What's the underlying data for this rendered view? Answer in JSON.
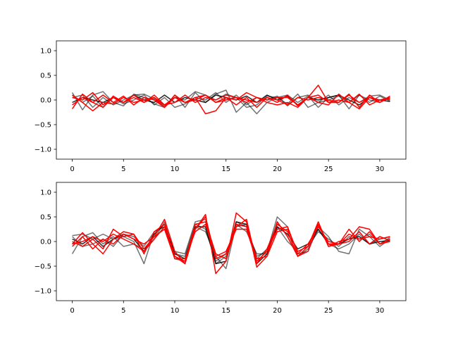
{
  "chart_data": [
    {
      "type": "line",
      "title": "",
      "xlabel": "",
      "ylabel": "",
      "xlim": [
        -1.55,
        32.55
      ],
      "ylim": [
        -1.2,
        1.2
      ],
      "xticks": [
        0,
        5,
        10,
        15,
        20,
        25,
        30
      ],
      "yticks": [
        -1.0,
        -0.5,
        0.0,
        0.5,
        1.0
      ],
      "xtick_labels": [
        "0",
        "5",
        "10",
        "15",
        "20",
        "25",
        "30"
      ],
      "ytick_labels": [
        "−1.0",
        "−0.5",
        "0.0",
        "0.5",
        "1.0"
      ],
      "grid": false,
      "x": [
        0,
        1,
        2,
        3,
        4,
        5,
        6,
        7,
        8,
        9,
        10,
        11,
        12,
        13,
        14,
        15,
        16,
        17,
        18,
        19,
        20,
        21,
        22,
        23,
        24,
        25,
        26,
        27,
        28,
        29,
        30,
        31
      ],
      "series": [
        {
          "color": "#000000",
          "opacity": 0.55,
          "values": [
            0.15,
            -0.2,
            0.1,
            0.17,
            -0.05,
            -0.12,
            0.12,
            0.05,
            -0.08,
            -0.15,
            0.1,
            -0.15,
            0.15,
            -0.05,
            0.12,
            0.2,
            -0.25,
            -0.05,
            -0.28,
            -0.05,
            0.05,
            0.1,
            -0.05,
            0.08,
            -0.15,
            0.05,
            0.1,
            -0.18,
            0.1,
            -0.05,
            0.08,
            -0.02
          ]
        },
        {
          "color": "#000000",
          "opacity": 0.55,
          "values": [
            0.05,
            0.1,
            -0.15,
            0.05,
            -0.1,
            0.0,
            0.1,
            0.12,
            0.02,
            -0.12,
            0.05,
            0.0,
            0.17,
            0.1,
            0.0,
            0.12,
            0.05,
            -0.15,
            -0.1,
            0.08,
            0.05,
            -0.08,
            0.12,
            -0.15,
            -0.05,
            0.1,
            -0.1,
            0.05,
            -0.05,
            0.08,
            0.1,
            0.0
          ]
        },
        {
          "color": "#000000",
          "opacity": 0.55,
          "values": [
            0.1,
            -0.05,
            0.08,
            -0.15,
            0.05,
            -0.08,
            0.0,
            0.1,
            -0.1,
            0.05,
            -0.15,
            -0.08,
            0.05,
            0.0,
            0.15,
            -0.05,
            0.1,
            -0.1,
            0.05,
            0.0,
            0.08,
            -0.12,
            0.05,
            0.1,
            -0.05,
            0.0,
            0.08,
            -0.05,
            0.1,
            0.0,
            -0.05,
            0.05
          ]
        },
        {
          "color": "#000000",
          "opacity": 0.85,
          "values": [
            -0.05,
            0.05,
            0.0,
            -0.05,
            0.05,
            -0.05,
            0.1,
            0.0,
            -0.05,
            0.1,
            -0.05,
            0.05,
            0.0,
            -0.05,
            0.1,
            0.05,
            0.0,
            0.08,
            -0.05,
            0.1,
            0.0,
            0.08,
            -0.1,
            0.05,
            0.0,
            0.05,
            0.1,
            0.0,
            -0.1,
            0.05,
            0.0,
            -0.03
          ]
        },
        {
          "color": "#ff0000",
          "opacity": 1.0,
          "values": [
            -0.18,
            0.12,
            -0.05,
            0.1,
            -0.05,
            0.08,
            -0.1,
            0.05,
            0.0,
            -0.15,
            0.1,
            -0.05,
            0.05,
            -0.28,
            -0.22,
            0.05,
            0.0,
            0.15,
            0.05,
            -0.05,
            -0.1,
            -0.05,
            -0.15,
            0.05,
            0.3,
            -0.05,
            -0.05,
            0.12,
            -0.15,
            0.1,
            -0.05,
            0.05
          ]
        },
        {
          "color": "#ff0000",
          "opacity": 1.0,
          "values": [
            0.1,
            -0.05,
            -0.22,
            -0.05,
            -0.08,
            0.05,
            -0.05,
            0.0,
            0.05,
            -0.15,
            0.05,
            -0.05,
            0.0,
            0.1,
            -0.05,
            0.05,
            -0.1,
            0.05,
            -0.15,
            0.05,
            -0.05,
            0.1,
            -0.12,
            0.05,
            -0.05,
            -0.1,
            0.12,
            -0.05,
            -0.18,
            0.05,
            -0.05,
            0.08
          ]
        },
        {
          "color": "#ff0000",
          "opacity": 1.0,
          "values": [
            0.05,
            0.0,
            0.15,
            -0.1,
            0.05,
            -0.05,
            0.05,
            -0.05,
            0.1,
            -0.1,
            0.05,
            -0.05,
            0.05,
            0.1,
            -0.05,
            0.0,
            0.05,
            -0.05,
            0.05,
            0.0,
            0.05,
            0.05,
            -0.1,
            0.05,
            0.1,
            -0.05,
            0.0,
            -0.05,
            0.12,
            -0.1,
            0.0,
            0.05
          ]
        },
        {
          "color": "#ff0000",
          "opacity": 1.0,
          "values": [
            -0.1,
            0.05,
            -0.05,
            -0.15,
            0.08,
            -0.05,
            0.1,
            -0.05,
            0.05,
            -0.1,
            -0.05,
            0.1,
            -0.05,
            0.05,
            0.0,
            0.1,
            0.05,
            0.0,
            -0.05,
            0.05,
            0.0,
            -0.1,
            0.05,
            0.0,
            0.05,
            0.0,
            -0.05,
            0.1,
            -0.05,
            0.05,
            0.0,
            0.02
          ]
        }
      ]
    },
    {
      "type": "line",
      "title": "",
      "xlabel": "",
      "ylabel": "",
      "xlim": [
        -1.55,
        32.55
      ],
      "ylim": [
        -1.2,
        1.2
      ],
      "xticks": [
        0,
        5,
        10,
        15,
        20,
        25,
        30
      ],
      "yticks": [
        -1.0,
        -0.5,
        0.0,
        0.5,
        1.0
      ],
      "xtick_labels": [
        "0",
        "5",
        "10",
        "15",
        "20",
        "25",
        "30"
      ],
      "ytick_labels": [
        "−1.0",
        "−0.5",
        "0.0",
        "0.5",
        "1.0"
      ],
      "grid": false,
      "x": [
        0,
        1,
        2,
        3,
        4,
        5,
        6,
        7,
        8,
        9,
        10,
        11,
        12,
        13,
        14,
        15,
        16,
        17,
        18,
        19,
        20,
        21,
        22,
        23,
        24,
        25,
        26,
        27,
        28,
        29,
        30,
        31
      ],
      "series": [
        {
          "color": "#000000",
          "opacity": 0.55,
          "values": [
            0.12,
            0.15,
            0.05,
            0.15,
            0.05,
            0.1,
            0.0,
            -0.45,
            0.2,
            0.3,
            -0.2,
            -0.25,
            0.4,
            0.45,
            -0.45,
            -0.3,
            0.4,
            0.3,
            -0.3,
            -0.2,
            0.5,
            0.3,
            -0.25,
            -0.2,
            0.3,
            0.1,
            -0.2,
            -0.25,
            0.25,
            0.1,
            -0.1,
            0.05
          ]
        },
        {
          "color": "#000000",
          "opacity": 0.55,
          "values": [
            -0.25,
            0.1,
            0.18,
            -0.05,
            0.1,
            -0.1,
            -0.05,
            -0.15,
            0.05,
            0.4,
            -0.35,
            -0.4,
            0.3,
            0.2,
            -0.3,
            -0.55,
            0.35,
            0.2,
            -0.25,
            -0.25,
            0.4,
            0.1,
            -0.3,
            -0.15,
            0.25,
            -0.05,
            -0.15,
            -0.05,
            0.15,
            -0.05,
            0.05,
            0.1
          ]
        },
        {
          "color": "#000000",
          "opacity": 0.55,
          "values": [
            0.1,
            -0.1,
            -0.05,
            0.05,
            -0.1,
            0.15,
            0.1,
            -0.1,
            0.2,
            0.3,
            -0.25,
            -0.3,
            0.35,
            0.25,
            -0.4,
            -0.25,
            0.3,
            0.35,
            -0.35,
            -0.15,
            0.3,
            0.0,
            -0.2,
            -0.1,
            0.2,
            0.05,
            -0.1,
            0.1,
            0.05,
            0.15,
            -0.05,
            0.08
          ]
        },
        {
          "color": "#000000",
          "opacity": 0.85,
          "values": [
            0.05,
            -0.05,
            0.1,
            -0.1,
            0.05,
            0.15,
            0.05,
            -0.2,
            0.15,
            0.35,
            -0.25,
            -0.35,
            0.3,
            0.3,
            -0.45,
            -0.4,
            0.4,
            0.35,
            -0.45,
            -0.25,
            0.3,
            0.15,
            -0.15,
            -0.05,
            0.25,
            -0.05,
            -0.05,
            0.05,
            0.1,
            -0.05,
            0.0,
            0.02
          ]
        },
        {
          "color": "#ff0000",
          "opacity": 1.0,
          "values": [
            -0.05,
            0.18,
            -0.05,
            -0.25,
            0.05,
            0.2,
            0.15,
            -0.15,
            0.1,
            0.45,
            -0.2,
            -0.45,
            0.25,
            0.55,
            -0.65,
            -0.4,
            0.58,
            0.4,
            -0.52,
            -0.3,
            0.4,
            0.1,
            -0.3,
            -0.2,
            0.35,
            -0.1,
            -0.05,
            0.25,
            0.0,
            0.2,
            -0.05,
            0.0
          ]
        },
        {
          "color": "#ff0000",
          "opacity": 1.0,
          "values": [
            0.0,
            -0.1,
            0.05,
            -0.15,
            0.25,
            0.1,
            0.15,
            -0.25,
            0.2,
            0.35,
            -0.3,
            -0.4,
            0.35,
            0.4,
            -0.25,
            -0.35,
            0.3,
            0.45,
            -0.45,
            -0.15,
            0.35,
            0.2,
            -0.3,
            -0.1,
            0.4,
            -0.1,
            0.0,
            0.05,
            0.3,
            0.25,
            -0.05,
            0.05
          ]
        },
        {
          "color": "#ff0000",
          "opacity": 1.0,
          "values": [
            -0.1,
            0.1,
            -0.15,
            0.05,
            -0.05,
            0.15,
            0.05,
            -0.05,
            0.1,
            0.25,
            -0.35,
            -0.35,
            0.2,
            0.35,
            -0.3,
            -0.2,
            0.25,
            0.25,
            -0.4,
            -0.2,
            0.25,
            0.3,
            -0.25,
            -0.05,
            0.3,
            0.0,
            -0.05,
            0.15,
            0.05,
            0.1,
            0.05,
            0.1
          ]
        },
        {
          "color": "#ff0000",
          "opacity": 1.0,
          "values": [
            -0.05,
            0.0,
            0.1,
            0.0,
            0.15,
            0.05,
            -0.05,
            -0.2,
            0.05,
            0.3,
            -0.3,
            -0.45,
            0.25,
            0.5,
            -0.35,
            -0.25,
            0.35,
            0.3,
            -0.35,
            -0.3,
            0.2,
            0.25,
            -0.2,
            -0.1,
            0.35,
            -0.05,
            -0.05,
            0.0,
            0.2,
            -0.05,
            0.1,
            0.02
          ]
        }
      ]
    }
  ]
}
